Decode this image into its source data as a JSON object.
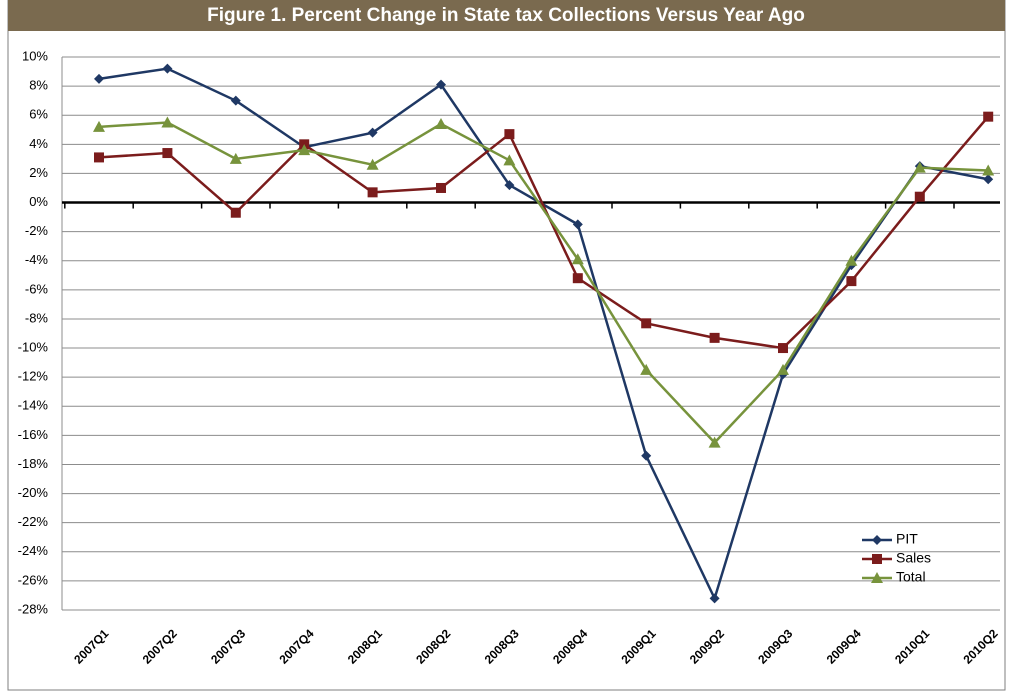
{
  "chart_data": {
    "type": "line",
    "title": "Figure 1. Percent Change in State tax Collections Versus Year Ago",
    "categories": [
      "2007Q1",
      "2007Q2",
      "2007Q3",
      "2007Q4",
      "2008Q1",
      "2008Q2",
      "2008Q3",
      "2008Q4",
      "2009Q1",
      "2009Q2",
      "2009Q3",
      "2009Q4",
      "2010Q1",
      "2010Q2"
    ],
    "series": [
      {
        "name": "PIT",
        "color": "#1f3864",
        "marker": "diamond",
        "values": [
          8.5,
          9.2,
          7.0,
          3.8,
          4.8,
          8.1,
          1.2,
          -1.5,
          -17.4,
          -27.2,
          -11.8,
          -4.3,
          2.5,
          1.6
        ]
      },
      {
        "name": "Sales",
        "color": "#7b1c1c",
        "marker": "square",
        "values": [
          3.1,
          3.4,
          -0.7,
          4.0,
          0.7,
          1.0,
          4.7,
          -5.2,
          -8.3,
          -9.3,
          -10.0,
          -5.4,
          0.4,
          5.9
        ]
      },
      {
        "name": "Total",
        "color": "#77933c",
        "marker": "triangle",
        "values": [
          5.2,
          5.5,
          3.0,
          3.6,
          2.6,
          5.4,
          2.9,
          -3.9,
          -11.5,
          -16.5,
          -11.5,
          -4.0,
          2.4,
          2.2
        ]
      }
    ],
    "ylim": [
      -28,
      10
    ],
    "yticks": [
      {
        "value": 10,
        "label": "10%"
      },
      {
        "value": 8,
        "label": "8%"
      },
      {
        "value": 6,
        "label": "6%"
      },
      {
        "value": 4,
        "label": "4%"
      },
      {
        "value": 2,
        "label": "2%"
      },
      {
        "value": 0,
        "label": "0%"
      },
      {
        "value": -2,
        "label": "-2%"
      },
      {
        "value": -4,
        "label": "-4%"
      },
      {
        "value": -6,
        "label": "-6%"
      },
      {
        "value": -8,
        "label": "-8%"
      },
      {
        "value": -10,
        "label": "-10%"
      },
      {
        "value": -12,
        "label": "-12%"
      },
      {
        "value": -14,
        "label": "-14%"
      },
      {
        "value": -16,
        "label": "-16%"
      },
      {
        "value": -18,
        "label": "-18%"
      },
      {
        "value": -20,
        "label": "-20%"
      },
      {
        "value": -22,
        "label": "-22%"
      },
      {
        "value": -24,
        "label": "-24%"
      },
      {
        "value": -26,
        "label": "-26%"
      },
      {
        "value": -28,
        "label": "-28%"
      }
    ],
    "grid": true,
    "legend": "bottom-right"
  }
}
